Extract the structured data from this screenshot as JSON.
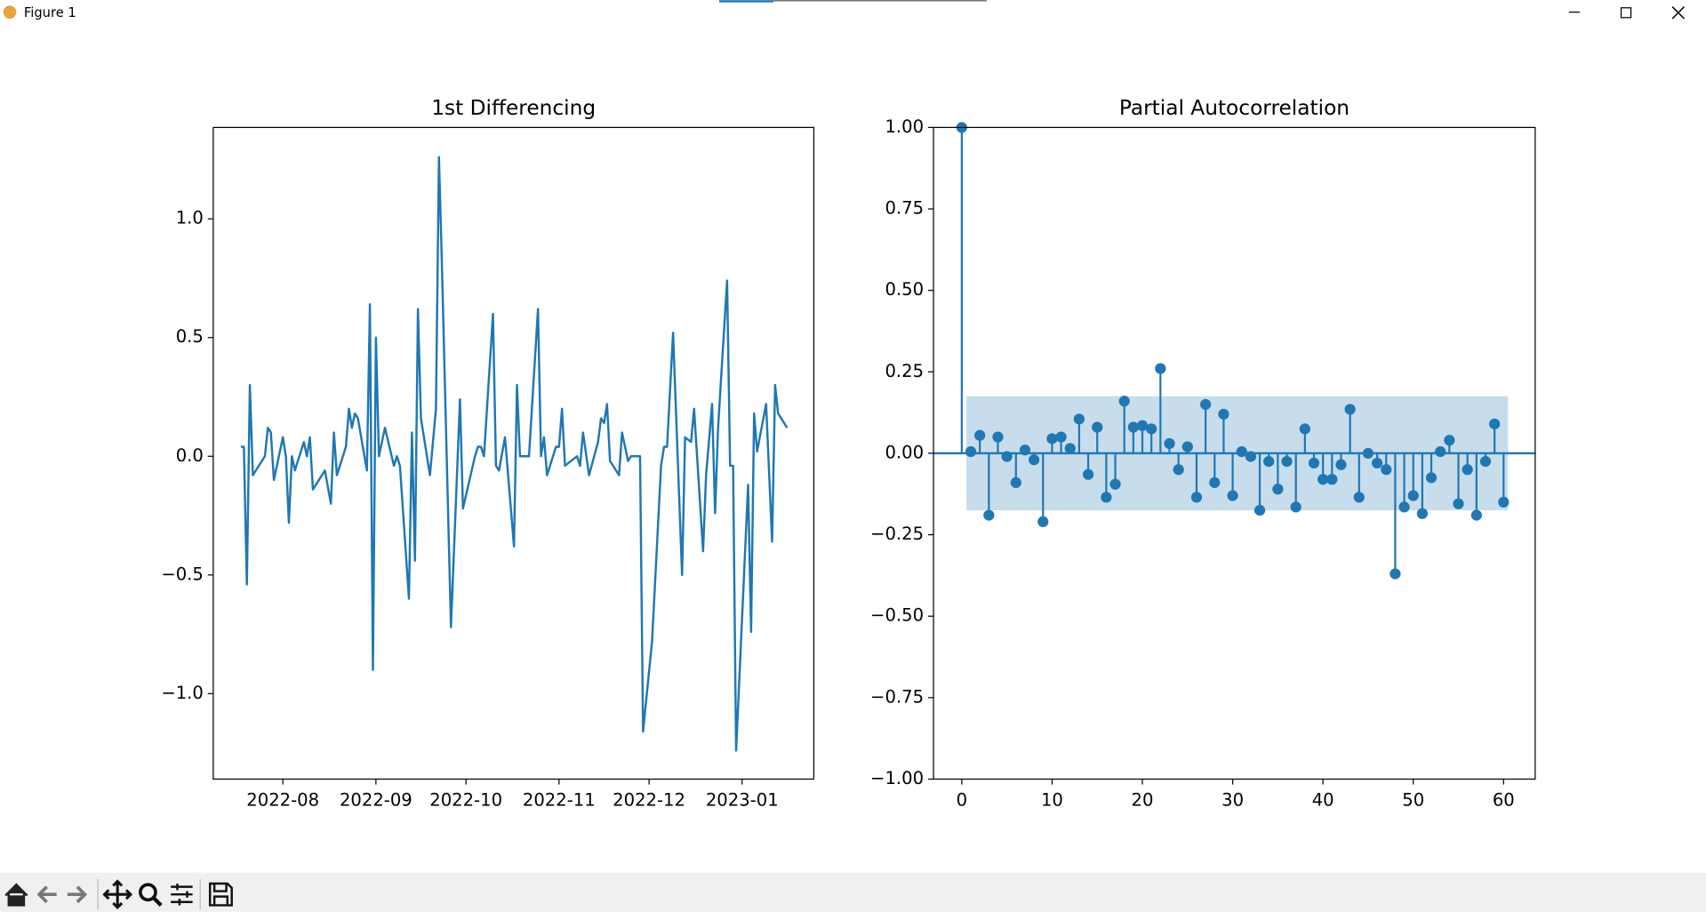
{
  "window": {
    "title": "Figure 1"
  },
  "chart_data": [
    {
      "type": "line",
      "title": "1st Differencing",
      "color": "#1f77b4",
      "x": [
        -14,
        -13,
        -12,
        -11,
        -10,
        -6,
        -5,
        -4,
        -3,
        0,
        1,
        2,
        3,
        4,
        7,
        8,
        9,
        10,
        14,
        16,
        17,
        18,
        21,
        22,
        23,
        24,
        25,
        28,
        29,
        30,
        31,
        32,
        34,
        37,
        38,
        39,
        42,
        43,
        44,
        45,
        46,
        49,
        51,
        52,
        53,
        56,
        59,
        60,
        64,
        65,
        66,
        67,
        70,
        71,
        72,
        74,
        77,
        78,
        79,
        82,
        85,
        86,
        87,
        88,
        91,
        92,
        93,
        94,
        98,
        99,
        100,
        102,
        105,
        106,
        107,
        108,
        109,
        112,
        113,
        115,
        116,
        119,
        120,
        123,
        126,
        127,
        128,
        130,
        133,
        134,
        136,
        137,
        140,
        141,
        143,
        144,
        145,
        148,
        149,
        150,
        151,
        155,
        156,
        157,
        158,
        161,
        163,
        164,
        165,
        168
      ],
      "values": [
        0.04,
        0.04,
        -0.54,
        0.3,
        -0.08,
        0.0,
        0.12,
        0.1,
        -0.1,
        0.08,
        0.0,
        -0.28,
        0.0,
        -0.06,
        0.06,
        0.0,
        0.08,
        -0.14,
        -0.06,
        -0.2,
        0.1,
        -0.08,
        0.04,
        0.2,
        0.12,
        0.18,
        0.16,
        -0.06,
        0.64,
        -0.9,
        0.5,
        0.0,
        0.12,
        -0.04,
        0.0,
        -0.04,
        -0.6,
        0.1,
        -0.44,
        0.62,
        0.16,
        -0.08,
        0.2,
        1.26,
        0.8,
        -0.72,
        0.24,
        -0.22,
        0.0,
        0.04,
        0.04,
        0.0,
        0.6,
        -0.04,
        -0.06,
        0.08,
        -0.38,
        0.3,
        0.0,
        0.0,
        0.62,
        0.0,
        0.08,
        -0.08,
        0.04,
        0.04,
        0.2,
        -0.04,
        0.0,
        -0.04,
        0.1,
        -0.08,
        0.06,
        0.16,
        0.14,
        0.22,
        -0.02,
        -0.08,
        0.1,
        -0.02,
        0.0,
        0.0,
        -1.16,
        -0.78,
        -0.04,
        0.04,
        0.04,
        0.52,
        -0.5,
        0.08,
        0.06,
        0.2,
        -0.4,
        -0.08,
        0.22,
        -0.24,
        0.12,
        0.74,
        -0.04,
        -0.04,
        -1.24,
        -0.12,
        -0.74,
        0.18,
        0.02,
        0.22,
        -0.36,
        0.3,
        0.18,
        0.12
      ],
      "xlim": [
        -23.2,
        176.9
      ],
      "xticks": [
        {
          "value": 0,
          "label": "2022-08"
        },
        {
          "value": 31,
          "label": "2022-09"
        },
        {
          "value": 61,
          "label": "2022-10"
        },
        {
          "value": 92,
          "label": "2022-11"
        },
        {
          "value": 122,
          "label": "2022-12"
        },
        {
          "value": 153,
          "label": "2023-01"
        }
      ],
      "ylim": [
        -1.36,
        1.385
      ],
      "yticks": [
        {
          "value": -1,
          "label": "−1.0"
        },
        {
          "value": -0.5,
          "label": "−0.5"
        },
        {
          "value": 0,
          "label": "0.0"
        },
        {
          "value": 0.5,
          "label": "0.5"
        },
        {
          "value": 1,
          "label": "1.0"
        }
      ]
    },
    {
      "type": "stem",
      "title": "Partial Autocorrelation",
      "color": "#1f77b4",
      "x": [
        0,
        1,
        2,
        3,
        4,
        5,
        6,
        7,
        8,
        9,
        10,
        11,
        12,
        13,
        14,
        15,
        16,
        17,
        18,
        19,
        20,
        21,
        22,
        23,
        24,
        25,
        26,
        27,
        28,
        29,
        30,
        31,
        32,
        33,
        34,
        35,
        36,
        37,
        38,
        39,
        40,
        41,
        42,
        43,
        44,
        45,
        46,
        47,
        48,
        49,
        50,
        51,
        52,
        53,
        54,
        55,
        56,
        57,
        58,
        59,
        60
      ],
      "values": [
        1.0,
        0.005,
        0.055,
        -0.19,
        0.05,
        -0.01,
        -0.09,
        0.01,
        -0.02,
        -0.21,
        0.045,
        0.05,
        0.015,
        0.105,
        -0.065,
        0.08,
        -0.135,
        -0.095,
        0.16,
        0.08,
        0.085,
        0.075,
        0.26,
        0.03,
        -0.05,
        0.02,
        -0.135,
        0.15,
        -0.09,
        0.12,
        -0.13,
        0.005,
        -0.01,
        -0.175,
        -0.025,
        -0.11,
        -0.025,
        -0.165,
        0.075,
        -0.03,
        -0.08,
        -0.08,
        -0.035,
        0.135,
        -0.135,
        0.0,
        -0.03,
        -0.05,
        -0.37,
        -0.165,
        -0.13,
        -0.185,
        -0.075,
        0.005,
        0.04,
        -0.155,
        -0.05,
        -0.19,
        -0.025,
        0.09,
        -0.15
      ],
      "confidence_interval": 0.175,
      "xlim": [
        -3.13,
        63.5
      ],
      "xticks": [
        0,
        10,
        20,
        30,
        40,
        50,
        60
      ],
      "ylim": [
        -1,
        1
      ],
      "yticks": [
        {
          "value": -1,
          "label": "−1.00"
        },
        {
          "value": -0.75,
          "label": "−0.75"
        },
        {
          "value": -0.5,
          "label": "−0.50"
        },
        {
          "value": -0.25,
          "label": "−0.25"
        },
        {
          "value": 0,
          "label": "0.00"
        },
        {
          "value": 0.25,
          "label": "0.25"
        },
        {
          "value": 0.5,
          "label": "0.50"
        },
        {
          "value": 0.75,
          "label": "0.75"
        },
        {
          "value": 1,
          "label": "1.00"
        }
      ]
    }
  ]
}
